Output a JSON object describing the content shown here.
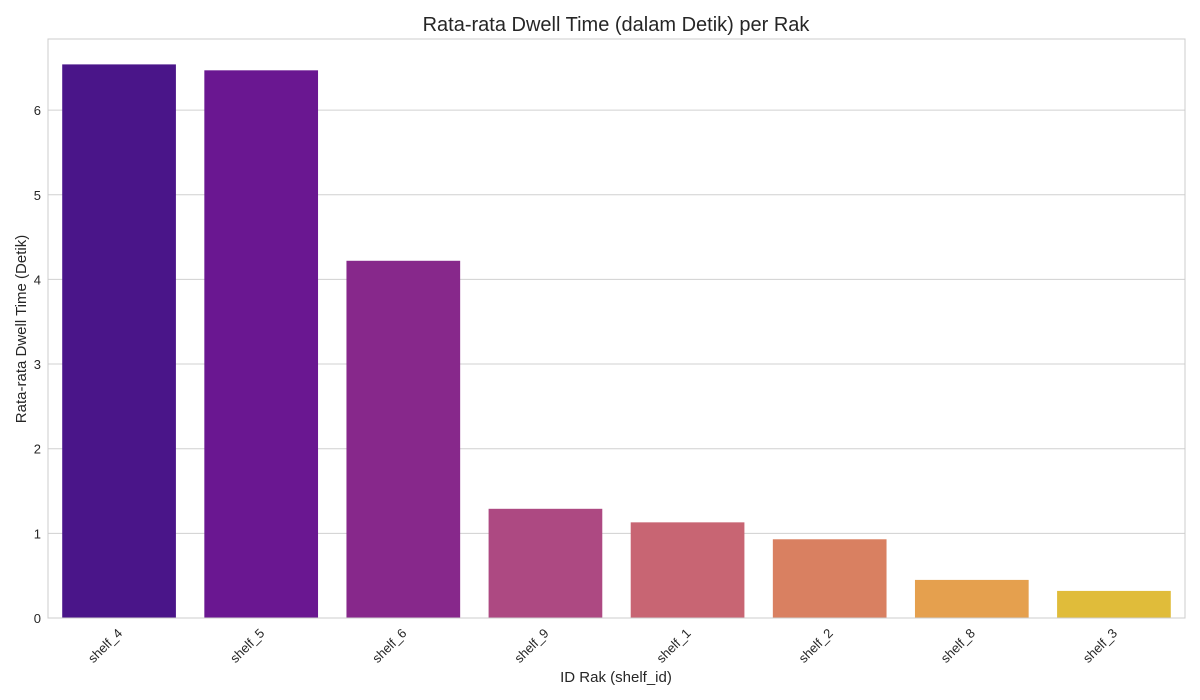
{
  "chart_data": {
    "type": "bar",
    "title": "Rata-rata Dwell Time (dalam Detik) per Rak",
    "xlabel": "ID Rak (shelf_id)",
    "ylabel": "Rata-rata Dwell Time (Detik)",
    "categories": [
      "shelf_4",
      "shelf_5",
      "shelf_6",
      "shelf_9",
      "shelf_1",
      "shelf_2",
      "shelf_8",
      "shelf_3"
    ],
    "values": [
      6.54,
      6.47,
      4.22,
      1.29,
      1.13,
      0.93,
      0.45,
      0.32
    ],
    "colors": [
      "#4a1589",
      "#6a1791",
      "#87288b",
      "#ad4982",
      "#c86573",
      "#d98061",
      "#e5a04e",
      "#e0bc3a"
    ],
    "yticks": [
      "0",
      "1",
      "2",
      "3",
      "4",
      "5",
      "6"
    ],
    "ylim": [
      0,
      6.84
    ],
    "grid": "horizontal",
    "xtick_rotation": 45
  }
}
